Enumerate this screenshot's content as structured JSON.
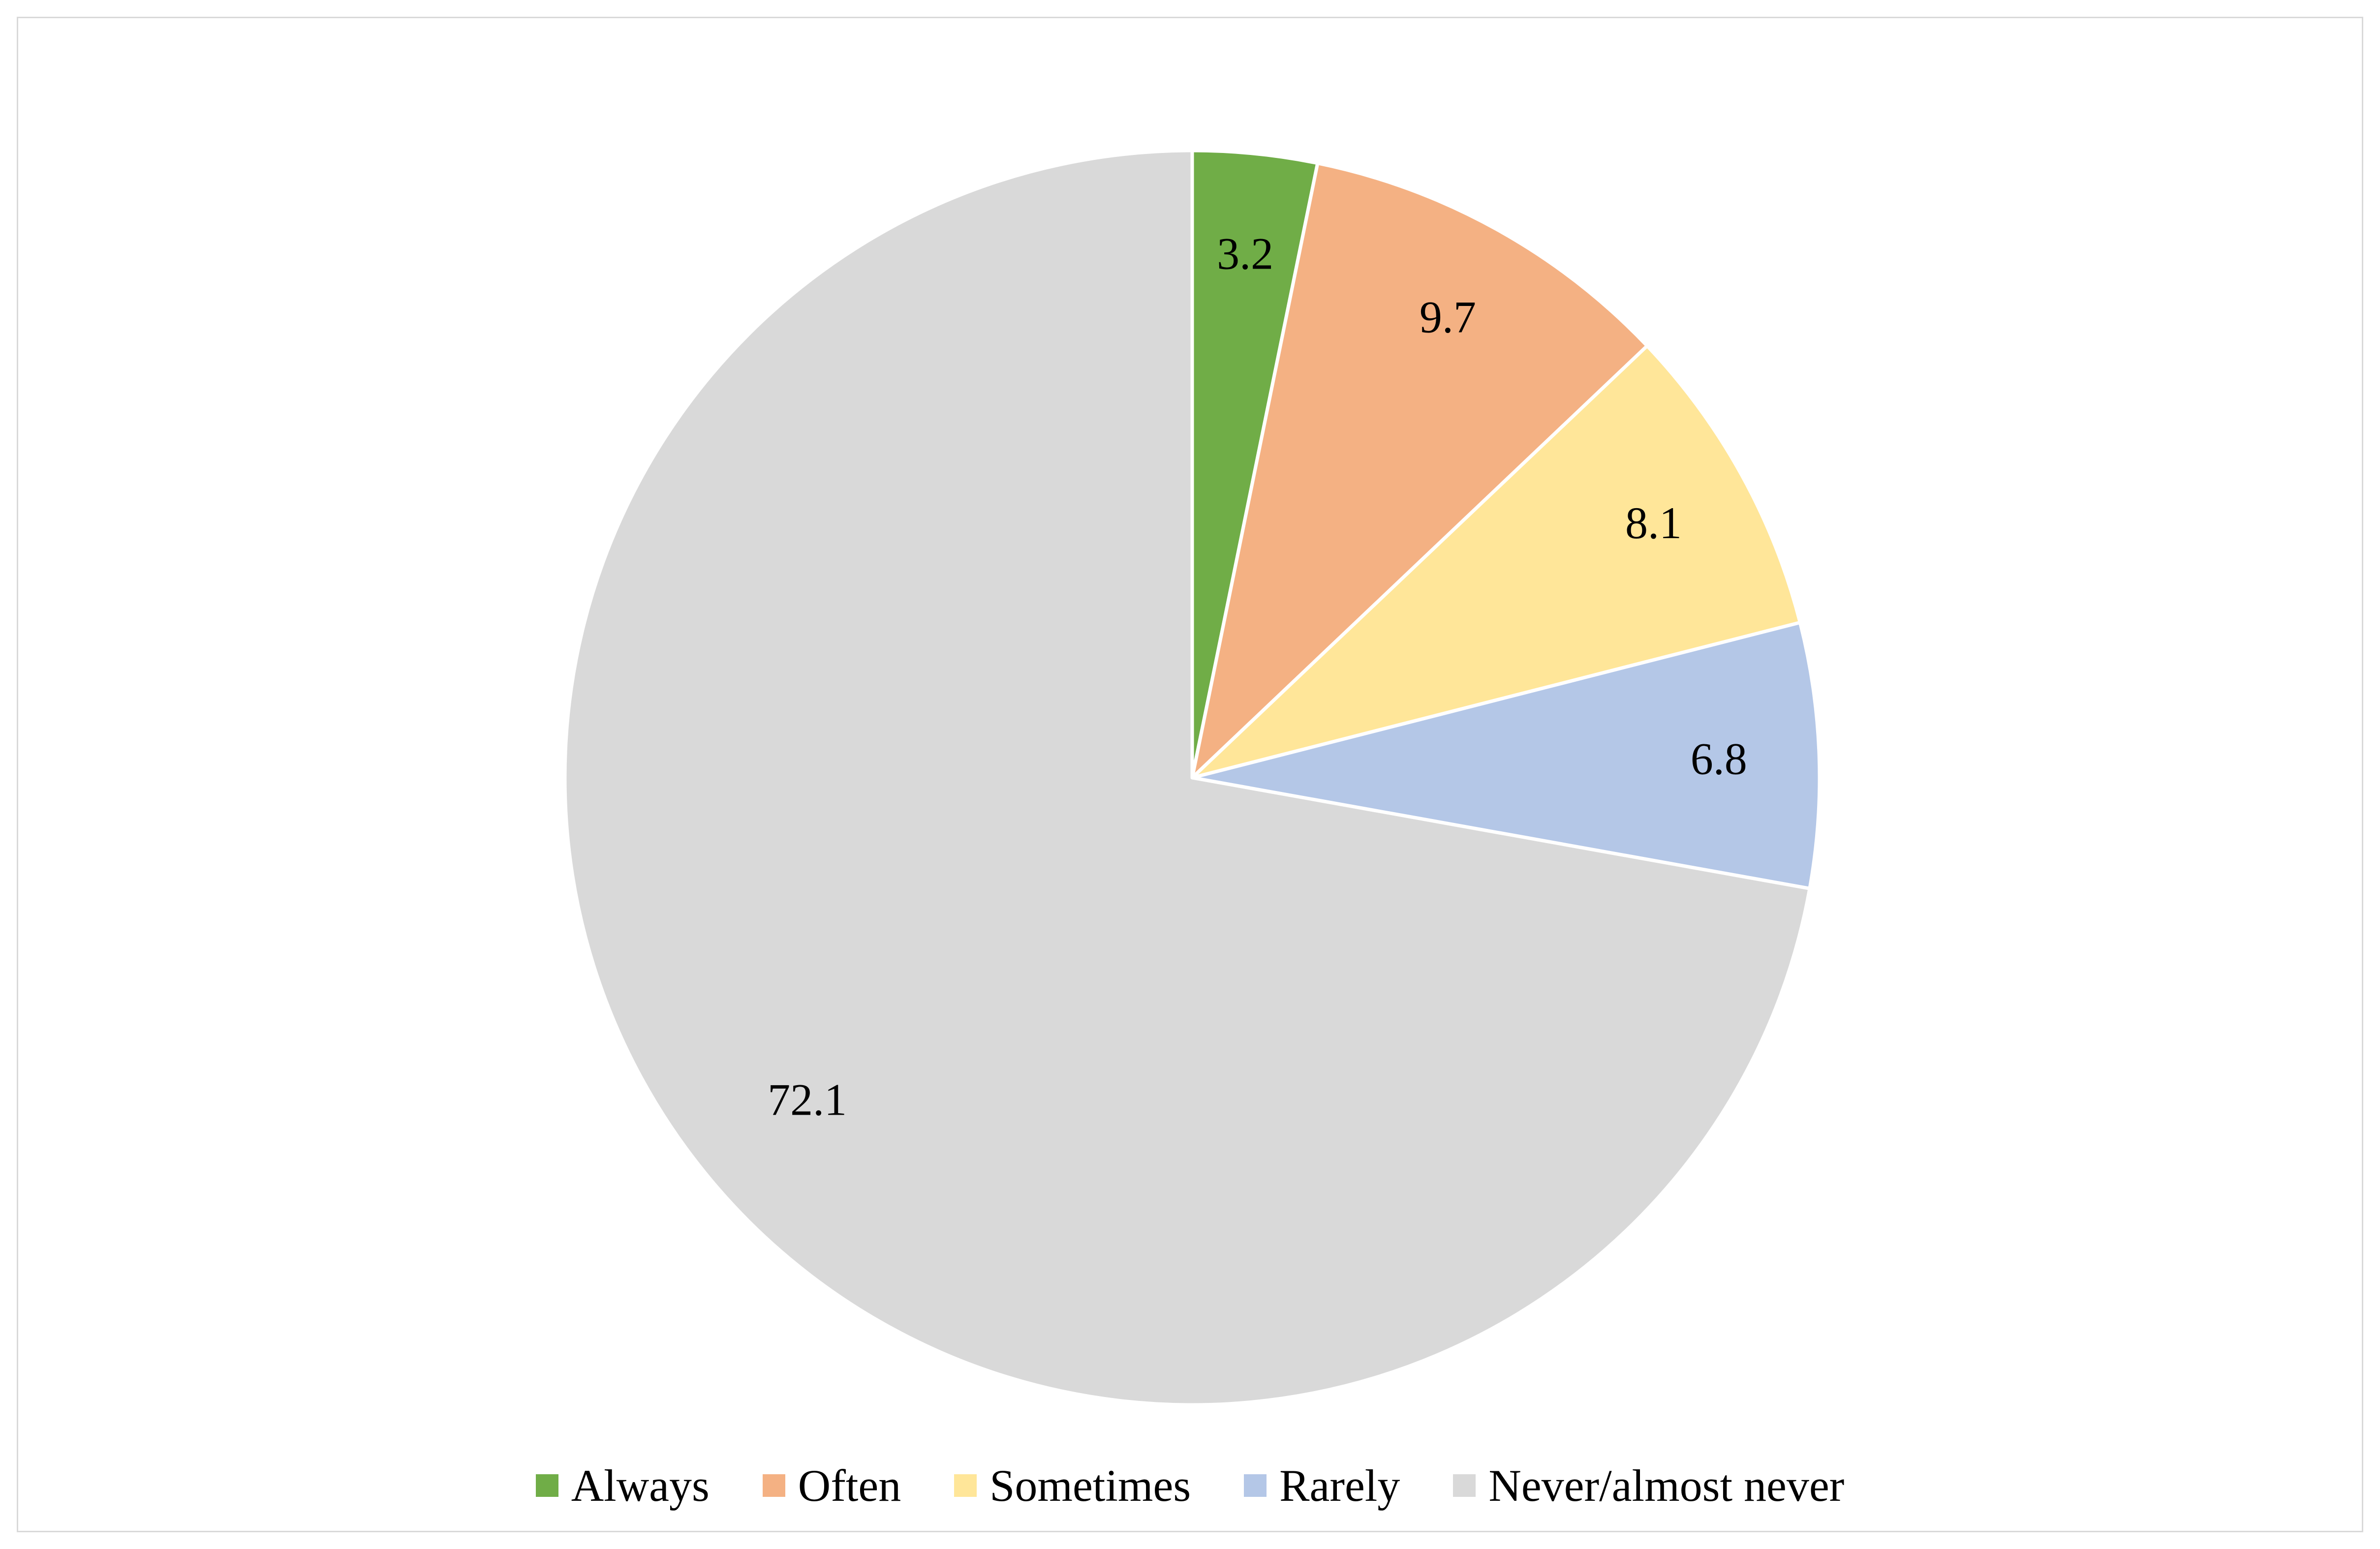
{
  "chart_data": {
    "type": "pie",
    "title": "",
    "slices": [
      {
        "label": "Always",
        "value": 3.2,
        "value_label": "3.2",
        "color": "#70ad47"
      },
      {
        "label": "Often",
        "value": 9.7,
        "value_label": "9.7",
        "color": "#f4b183"
      },
      {
        "label": "Sometimes",
        "value": 8.1,
        "value_label": "8.1",
        "color": "#ffe699"
      },
      {
        "label": "Rarely",
        "value": 6.8,
        "value_label": "6.8",
        "color": "#b4c7e7"
      },
      {
        "label": "Never/almost never",
        "value": 72.1,
        "value_label": "72.1",
        "color": "#d9d9d9"
      }
    ],
    "start_angle_deg": 0,
    "direction": "clockwise",
    "legend_position": "bottom",
    "slice_border_color": "#ffffff"
  }
}
